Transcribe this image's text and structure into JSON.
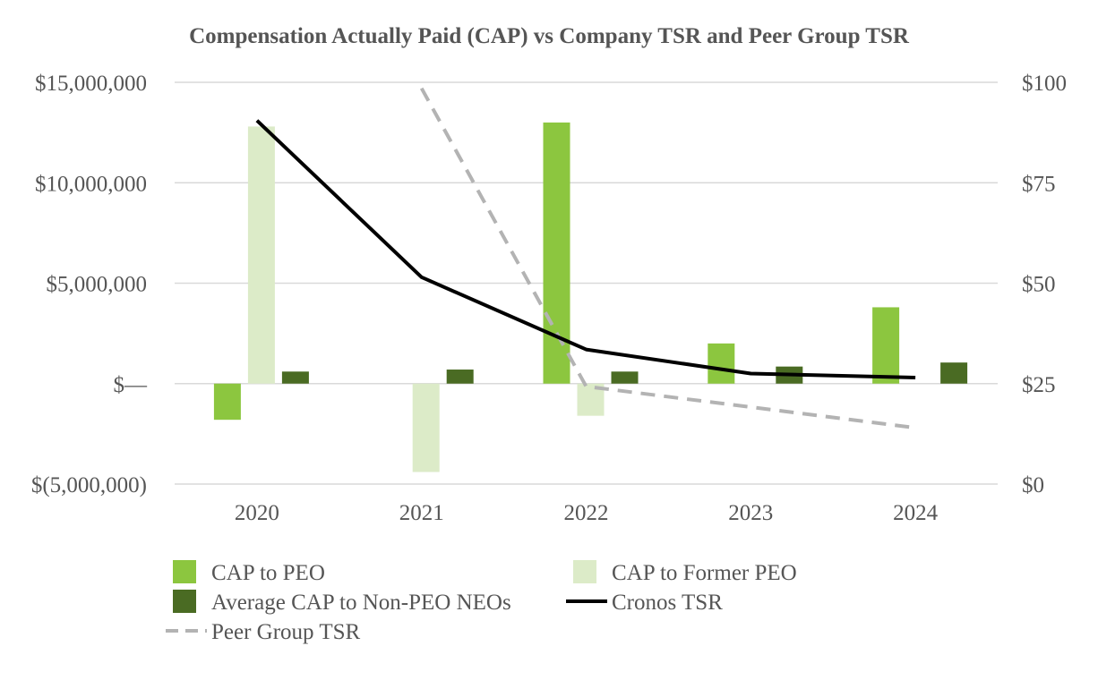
{
  "chart_data": {
    "type": "bar",
    "title": "Compensation Actually Paid (CAP) vs Company TSR and Peer Group TSR",
    "categories": [
      "2020",
      "2021",
      "2022",
      "2023",
      "2024"
    ],
    "left_axis": {
      "ylim": [
        -5000000,
        15000000
      ],
      "ticks": [
        {
          "value": 15000000,
          "label": "$15,000,000"
        },
        {
          "value": 10000000,
          "label": "$10,000,000"
        },
        {
          "value": 5000000,
          "label": "$5,000,000"
        },
        {
          "value": 0,
          "label": "$—"
        },
        {
          "value": -5000000,
          "label": "$(5,000,000)"
        }
      ]
    },
    "right_axis": {
      "ylim": [
        0,
        100
      ],
      "ticks": [
        {
          "value": 100,
          "label": "$100"
        },
        {
          "value": 75,
          "label": "$75"
        },
        {
          "value": 50,
          "label": "$50"
        },
        {
          "value": 25,
          "label": "$25"
        },
        {
          "value": 0,
          "label": "$0"
        }
      ]
    },
    "bar_series": [
      {
        "name": "CAP to PEO",
        "color": "#8cc63f",
        "values": [
          -1800000,
          null,
          13000000,
          2000000,
          3800000
        ]
      },
      {
        "name": "CAP to Former PEO",
        "color": "#dcebc8",
        "values": [
          12800000,
          -4400000,
          -1600000,
          null,
          null
        ]
      },
      {
        "name": "Average CAP to Non-PEO NEOs",
        "color": "#4a6b23",
        "values": [
          600000,
          700000,
          600000,
          850000,
          1050000
        ]
      }
    ],
    "line_series": [
      {
        "name": "Cronos TSR",
        "color": "#000000",
        "style": "solid",
        "values": [
          90.5,
          51.5,
          33.5,
          27.5,
          26.5
        ]
      },
      {
        "name": "Peer Group TSR",
        "color": "#b3b3b3",
        "style": "dashed",
        "values": [
          null,
          98.5,
          24.3,
          null,
          14.0
        ]
      }
    ],
    "legend": [
      {
        "name": "CAP to PEO",
        "kind": "bar",
        "color": "#8cc63f"
      },
      {
        "name": "CAP to Former PEO",
        "kind": "bar",
        "color": "#dcebc8"
      },
      {
        "name": "Average CAP to Non-PEO NEOs",
        "kind": "bar",
        "color": "#4a6b23"
      },
      {
        "name": "Cronos TSR",
        "kind": "line",
        "color": "#000000"
      },
      {
        "name": "Peer Group TSR",
        "kind": "dashed",
        "color": "#b3b3b3"
      }
    ],
    "legend_position": "bottom",
    "grid": true
  }
}
